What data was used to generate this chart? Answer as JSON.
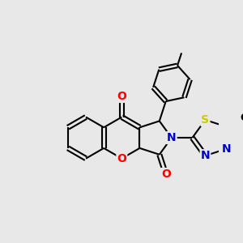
{
  "background_color": "#e8e8e8",
  "bond_color": "#000000",
  "atom_colors": {
    "O": "#ff0000",
    "N": "#0000cd",
    "S": "#cccc00",
    "C": "#000000"
  },
  "bond_width": 1.5,
  "dbo": 0.055,
  "font_size_atom": 10,
  "fig_width": 3.0,
  "fig_height": 3.0,
  "dpi": 100,
  "xlim": [
    -2.7,
    2.3
  ],
  "ylim": [
    -1.9,
    2.7
  ]
}
